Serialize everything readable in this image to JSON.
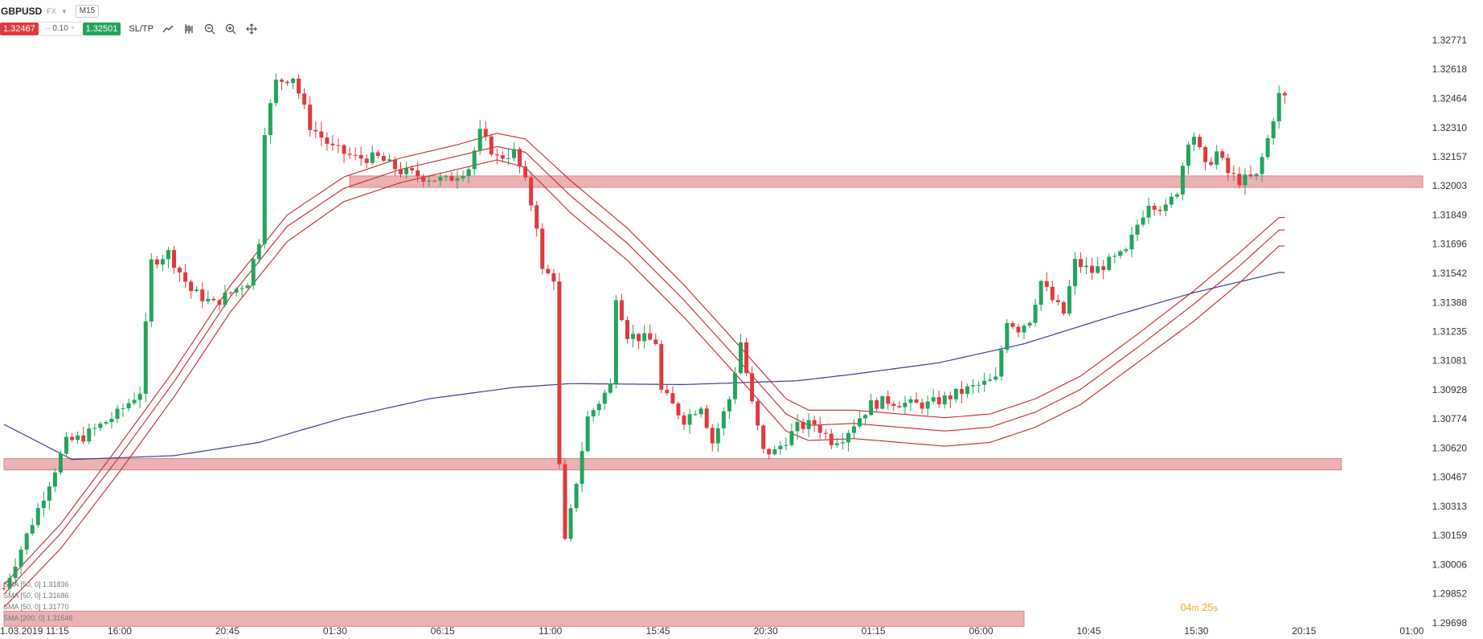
{
  "header": {
    "symbol": "GBPUSD",
    "market": "FX",
    "timeframe": "M15",
    "sell_price": "1.32467",
    "quantity": "0.10",
    "buy_price": "1.32501",
    "sltp_label": "SL/TP"
  },
  "icons": [
    "chart-type-icon",
    "indicators-icon",
    "zoom-out-icon",
    "zoom-in-icon",
    "crosshair-icon"
  ],
  "legend": [
    "SMA [50, 0] 1.31836",
    "SMA [50, 0] 1.31686",
    "SMA [50, 0] 1.31770",
    "SMA [200, 0] 1.31546"
  ],
  "timer": {
    "minutes": "04",
    "seconds": "25"
  },
  "chart_data": {
    "type": "candlestick",
    "ylim": [
      1.29698,
      1.32771
    ],
    "y_ticks": [
      "1.32771",
      "1.32618",
      "1.32464",
      "1.32310",
      "1.32157",
      "1.32003",
      "1.31849",
      "1.31696",
      "1.31542",
      "1.31388",
      "1.31235",
      "1.31081",
      "1.30928",
      "1.30774",
      "1.30620",
      "1.30467",
      "1.30313",
      "1.30159",
      "1.30006",
      "1.29852",
      "1.29698"
    ],
    "x_ticks": [
      {
        "label": "1.03.2019 11:15",
        "i": 0
      },
      {
        "label": "16:00",
        "i": 19
      },
      {
        "label": "20:45",
        "i": 38
      },
      {
        "label": "01:30",
        "i": 57
      },
      {
        "label": "06:15",
        "i": 76
      },
      {
        "label": "11:00",
        "i": 95
      },
      {
        "label": "15:45",
        "i": 114
      },
      {
        "label": "20:30",
        "i": 133
      },
      {
        "label": "01:15",
        "i": 152
      },
      {
        "label": "06:00",
        "i": 171
      },
      {
        "label": "10:45",
        "i": 190
      },
      {
        "label": "15:30",
        "i": 209
      },
      {
        "label": "20:15",
        "i": 228
      },
      {
        "label": "01:00",
        "i": 247
      }
    ],
    "zones": [
      {
        "from": 1.31995,
        "to": 1.32055,
        "start_i": 61,
        "end_i": 252
      },
      {
        "from": 1.30505,
        "to": 1.30565,
        "start_i": 0,
        "end_i": 236
      },
      {
        "from": 1.2968,
        "to": 1.2976,
        "start_i": 0,
        "end_i": 180
      }
    ],
    "anchors": [
      [
        0,
        1.2988
      ],
      [
        6,
        1.303
      ],
      [
        11,
        1.3065
      ],
      [
        14,
        1.3068
      ],
      [
        20,
        1.308
      ],
      [
        24,
        1.3092
      ],
      [
        26,
        1.316
      ],
      [
        29,
        1.3165
      ],
      [
        33,
        1.3145
      ],
      [
        37,
        1.3138
      ],
      [
        43,
        1.315
      ],
      [
        45,
        1.3172
      ],
      [
        46,
        1.323
      ],
      [
        48,
        1.3255
      ],
      [
        51,
        1.3258
      ],
      [
        54,
        1.3232
      ],
      [
        58,
        1.322
      ],
      [
        62,
        1.3215
      ],
      [
        66,
        1.3215
      ],
      [
        70,
        1.3208
      ],
      [
        74,
        1.3205
      ],
      [
        78,
        1.3203
      ],
      [
        82,
        1.321
      ],
      [
        84,
        1.3228
      ],
      [
        87,
        1.3215
      ],
      [
        90,
        1.3218
      ],
      [
        92,
        1.3202
      ],
      [
        94,
        1.318
      ],
      [
        95,
        1.3155
      ],
      [
        97,
        1.3152
      ],
      [
        98,
        1.3052
      ],
      [
        99,
        1.3012
      ],
      [
        100,
        1.3028
      ],
      [
        103,
        1.3078
      ],
      [
        107,
        1.3095
      ],
      [
        108,
        1.3143
      ],
      [
        110,
        1.3122
      ],
      [
        115,
        1.3118
      ],
      [
        116,
        1.3092
      ],
      [
        120,
        1.3077
      ],
      [
        123,
        1.3085
      ],
      [
        125,
        1.3065
      ],
      [
        128,
        1.3088
      ],
      [
        130,
        1.3118
      ],
      [
        132,
        1.3085
      ],
      [
        134,
        1.306
      ],
      [
        136,
        1.306
      ],
      [
        140,
        1.3073
      ],
      [
        143,
        1.3075
      ],
      [
        146,
        1.3066
      ],
      [
        148,
        1.3068
      ],
      [
        150,
        1.3075
      ],
      [
        153,
        1.3085
      ],
      [
        156,
        1.3087
      ],
      [
        160,
        1.3085
      ],
      [
        163,
        1.3085
      ],
      [
        166,
        1.3088
      ],
      [
        170,
        1.3093
      ],
      [
        175,
        1.3098
      ],
      [
        177,
        1.313
      ],
      [
        179,
        1.3125
      ],
      [
        181,
        1.313
      ],
      [
        183,
        1.315
      ],
      [
        185,
        1.314
      ],
      [
        187,
        1.3133
      ],
      [
        189,
        1.316
      ],
      [
        192,
        1.3155
      ],
      [
        195,
        1.316
      ],
      [
        198,
        1.3165
      ],
      [
        200,
        1.318
      ],
      [
        202,
        1.3192
      ],
      [
        205,
        1.3188
      ],
      [
        207,
        1.3198
      ],
      [
        209,
        1.3225
      ],
      [
        210,
        1.3227
      ],
      [
        212,
        1.321
      ],
      [
        214,
        1.3218
      ],
      [
        216,
        1.3207
      ],
      [
        218,
        1.3203
      ],
      [
        221,
        1.3205
      ],
      [
        223,
        1.3225
      ],
      [
        225,
        1.3248
      ]
    ],
    "n_candles": 226,
    "sma200": [
      [
        0,
        1.30745
      ],
      [
        12,
        1.3056
      ],
      [
        30,
        1.3058
      ],
      [
        45,
        1.3065
      ],
      [
        60,
        1.3078
      ],
      [
        75,
        1.3088
      ],
      [
        90,
        1.3094
      ],
      [
        100,
        1.3096
      ],
      [
        120,
        1.30955
      ],
      [
        140,
        1.30975
      ],
      [
        150,
        1.3101
      ],
      [
        165,
        1.3107
      ],
      [
        180,
        1.3117
      ],
      [
        195,
        1.3131
      ],
      [
        210,
        1.3144
      ],
      [
        225,
        1.31546
      ]
    ],
    "ribbon": [
      {
        "name": "SMA [50, 0] 1.31836",
        "points": [
          [
            0,
            1.299
          ],
          [
            10,
            1.3022
          ],
          [
            20,
            1.3062
          ],
          [
            30,
            1.3103
          ],
          [
            40,
            1.3148
          ],
          [
            50,
            1.3185
          ],
          [
            60,
            1.3205
          ],
          [
            70,
            1.3215
          ],
          [
            80,
            1.3222
          ],
          [
            87,
            1.3228
          ],
          [
            92,
            1.3225
          ],
          [
            100,
            1.3203
          ],
          [
            110,
            1.3178
          ],
          [
            120,
            1.3148
          ],
          [
            130,
            1.3115
          ],
          [
            138,
            1.3088
          ],
          [
            142,
            1.3082
          ],
          [
            150,
            1.3082
          ],
          [
            158,
            1.308
          ],
          [
            166,
            1.3078
          ],
          [
            174,
            1.308
          ],
          [
            182,
            1.3088
          ],
          [
            190,
            1.31
          ],
          [
            200,
            1.3122
          ],
          [
            210,
            1.3145
          ],
          [
            218,
            1.3165
          ],
          [
            225,
            1.31836
          ]
        ]
      },
      {
        "name": "SMA [50, 0] 1.31770",
        "points": [
          [
            0,
            1.2985
          ],
          [
            10,
            1.3017
          ],
          [
            20,
            1.3056
          ],
          [
            30,
            1.3097
          ],
          [
            40,
            1.3142
          ],
          [
            50,
            1.3179
          ],
          [
            60,
            1.3199
          ],
          [
            70,
            1.3209
          ],
          [
            80,
            1.3216
          ],
          [
            87,
            1.3221
          ],
          [
            92,
            1.3218
          ],
          [
            100,
            1.3195
          ],
          [
            110,
            1.317
          ],
          [
            120,
            1.314
          ],
          [
            130,
            1.3107
          ],
          [
            138,
            1.308
          ],
          [
            142,
            1.3074
          ],
          [
            150,
            1.3075
          ],
          [
            158,
            1.3073
          ],
          [
            166,
            1.3071
          ],
          [
            174,
            1.3073
          ],
          [
            182,
            1.3081
          ],
          [
            190,
            1.3093
          ],
          [
            200,
            1.3115
          ],
          [
            210,
            1.3138
          ],
          [
            218,
            1.3158
          ],
          [
            225,
            1.3177
          ]
        ]
      },
      {
        "name": "SMA [50, 0] 1.31686",
        "points": [
          [
            0,
            1.2978
          ],
          [
            10,
            1.3009
          ],
          [
            20,
            1.3048
          ],
          [
            30,
            1.3089
          ],
          [
            40,
            1.3134
          ],
          [
            50,
            1.3171
          ],
          [
            60,
            1.3192
          ],
          [
            70,
            1.3202
          ],
          [
            80,
            1.3209
          ],
          [
            87,
            1.3214
          ],
          [
            92,
            1.321
          ],
          [
            100,
            1.3186
          ],
          [
            110,
            1.3161
          ],
          [
            120,
            1.3131
          ],
          [
            130,
            1.3098
          ],
          [
            138,
            1.3071
          ],
          [
            142,
            1.3066
          ],
          [
            150,
            1.3067
          ],
          [
            158,
            1.3065
          ],
          [
            166,
            1.3063
          ],
          [
            174,
            1.3065
          ],
          [
            182,
            1.3073
          ],
          [
            190,
            1.3085
          ],
          [
            200,
            1.3107
          ],
          [
            210,
            1.3129
          ],
          [
            218,
            1.3149
          ],
          [
            225,
            1.31686
          ]
        ]
      }
    ],
    "colors": {
      "up": "#23a45e",
      "down": "#e03a3e",
      "sma200": "#3b3f8f",
      "ribbon": "#c8262c",
      "zone": "#e8a5a7",
      "grid": "#eeeeee"
    }
  }
}
